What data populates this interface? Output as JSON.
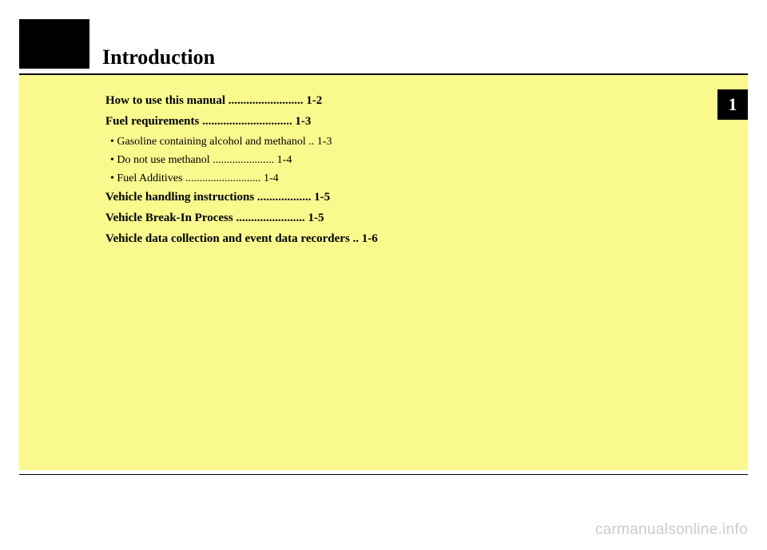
{
  "title": "Introduction",
  "chapter_number": "1",
  "toc": [
    {
      "type": "main",
      "label": "How to use this manual",
      "page": "1-2"
    },
    {
      "type": "main",
      "label": "Fuel requirements",
      "page": "1-3"
    },
    {
      "type": "sub",
      "label": "Gasoline containing alcohol and methanol",
      "page": "1-3"
    },
    {
      "type": "sub",
      "label": "Do not use methanol",
      "page": "1-4"
    },
    {
      "type": "sub",
      "label": "Fuel Additives",
      "page": "1-4"
    },
    {
      "type": "main",
      "label": "Vehicle handling instructions",
      "page": "1-5"
    },
    {
      "type": "main",
      "label": "Vehicle Break-In Process",
      "page": "1-5"
    },
    {
      "type": "main",
      "label": "Vehicle data collection and event data recorders",
      "page": "1-6"
    }
  ],
  "watermark": "carmanualsonline.info",
  "colors": {
    "yellow": "#f9f98e",
    "black": "#000000",
    "watermark_gray": "#cccccc"
  },
  "layout": {
    "toc_leader_width": 52,
    "toc_sub_leader_width": 48
  }
}
